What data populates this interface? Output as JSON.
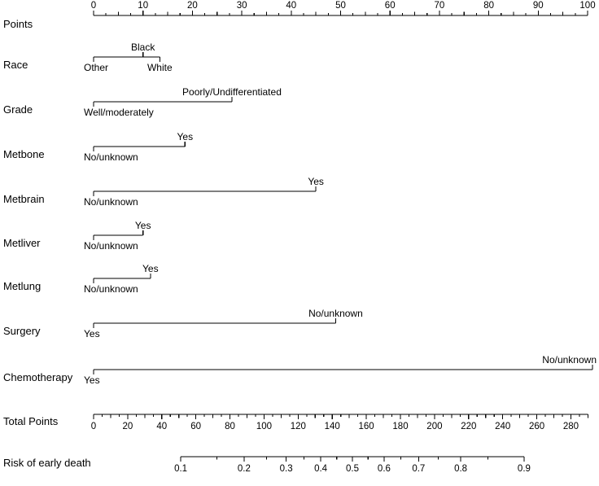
{
  "chart_data": {
    "type": "nomogram",
    "points_axis": {
      "label": "Points",
      "min": 0,
      "max": 100,
      "label_step": 10,
      "mid_step": 5,
      "minor_step": 2.5,
      "tick_labels": [
        "0",
        "10",
        "20",
        "30",
        "40",
        "50",
        "60",
        "70",
        "80",
        "90",
        "100"
      ]
    },
    "rows": [
      {
        "id": "race",
        "label": "Race",
        "categories": [
          {
            "label": "Other",
            "points": 0,
            "side": "below"
          },
          {
            "label": "Black",
            "points": 10,
            "side": "above"
          },
          {
            "label": "White",
            "points": 13.4,
            "side": "below"
          }
        ]
      },
      {
        "id": "grade",
        "label": "Grade",
        "categories": [
          {
            "label": "Well/moderately",
            "points": 0,
            "side": "below"
          },
          {
            "label": "Poorly/Undifferentiated",
            "points": 28,
            "side": "above"
          }
        ]
      },
      {
        "id": "metbone",
        "label": "Metbone",
        "categories": [
          {
            "label": "No/unknown",
            "points": 0,
            "side": "below"
          },
          {
            "label": "Yes",
            "points": 18.5,
            "side": "above"
          }
        ]
      },
      {
        "id": "metbrain",
        "label": "Metbrain",
        "categories": [
          {
            "label": "No/unknown",
            "points": 0,
            "side": "below"
          },
          {
            "label": "Yes",
            "points": 45,
            "side": "above"
          }
        ]
      },
      {
        "id": "metliver",
        "label": "Metliver",
        "categories": [
          {
            "label": "No/unknown",
            "points": 0,
            "side": "below"
          },
          {
            "label": "Yes",
            "points": 10,
            "side": "above"
          }
        ]
      },
      {
        "id": "metlung",
        "label": "Metlung",
        "categories": [
          {
            "label": "No/unknown",
            "points": 0,
            "side": "below"
          },
          {
            "label": "Yes",
            "points": 11.5,
            "side": "above"
          }
        ]
      },
      {
        "id": "surgery",
        "label": "Surgery",
        "categories": [
          {
            "label": "Yes",
            "points": 0,
            "side": "below"
          },
          {
            "label": "No/unknown",
            "points": 49,
            "side": "above"
          }
        ]
      },
      {
        "id": "chemotherapy",
        "label": "Chemotherapy",
        "categories": [
          {
            "label": "Yes",
            "points": 0,
            "side": "below"
          },
          {
            "label": "No/unknown",
            "points": 101,
            "side": "above"
          }
        ]
      }
    ],
    "total_points_axis": {
      "label": "Total Points",
      "min": 0,
      "max": 290,
      "label_step": 20,
      "mid_step": 10,
      "minor_step": 5,
      "last_label": 280,
      "tick_labels": [
        "0",
        "20",
        "40",
        "60",
        "80",
        "100",
        "120",
        "140",
        "160",
        "180",
        "200",
        "220",
        "240",
        "260",
        "280"
      ]
    },
    "risk_axis": {
      "label": "Risk of early death",
      "scale": "logistic",
      "tick_values": [
        0.1,
        0.2,
        0.3,
        0.4,
        0.5,
        0.6,
        0.7,
        0.8,
        0.9
      ],
      "minor_values": [
        0.15,
        0.25,
        0.35,
        0.45,
        0.55,
        0.65,
        0.75,
        0.85
      ],
      "tick_labels": [
        "0.1",
        "0.2",
        "0.3",
        "0.4",
        "0.5",
        "0.6",
        "0.7",
        "0.8",
        "0.9"
      ]
    }
  }
}
